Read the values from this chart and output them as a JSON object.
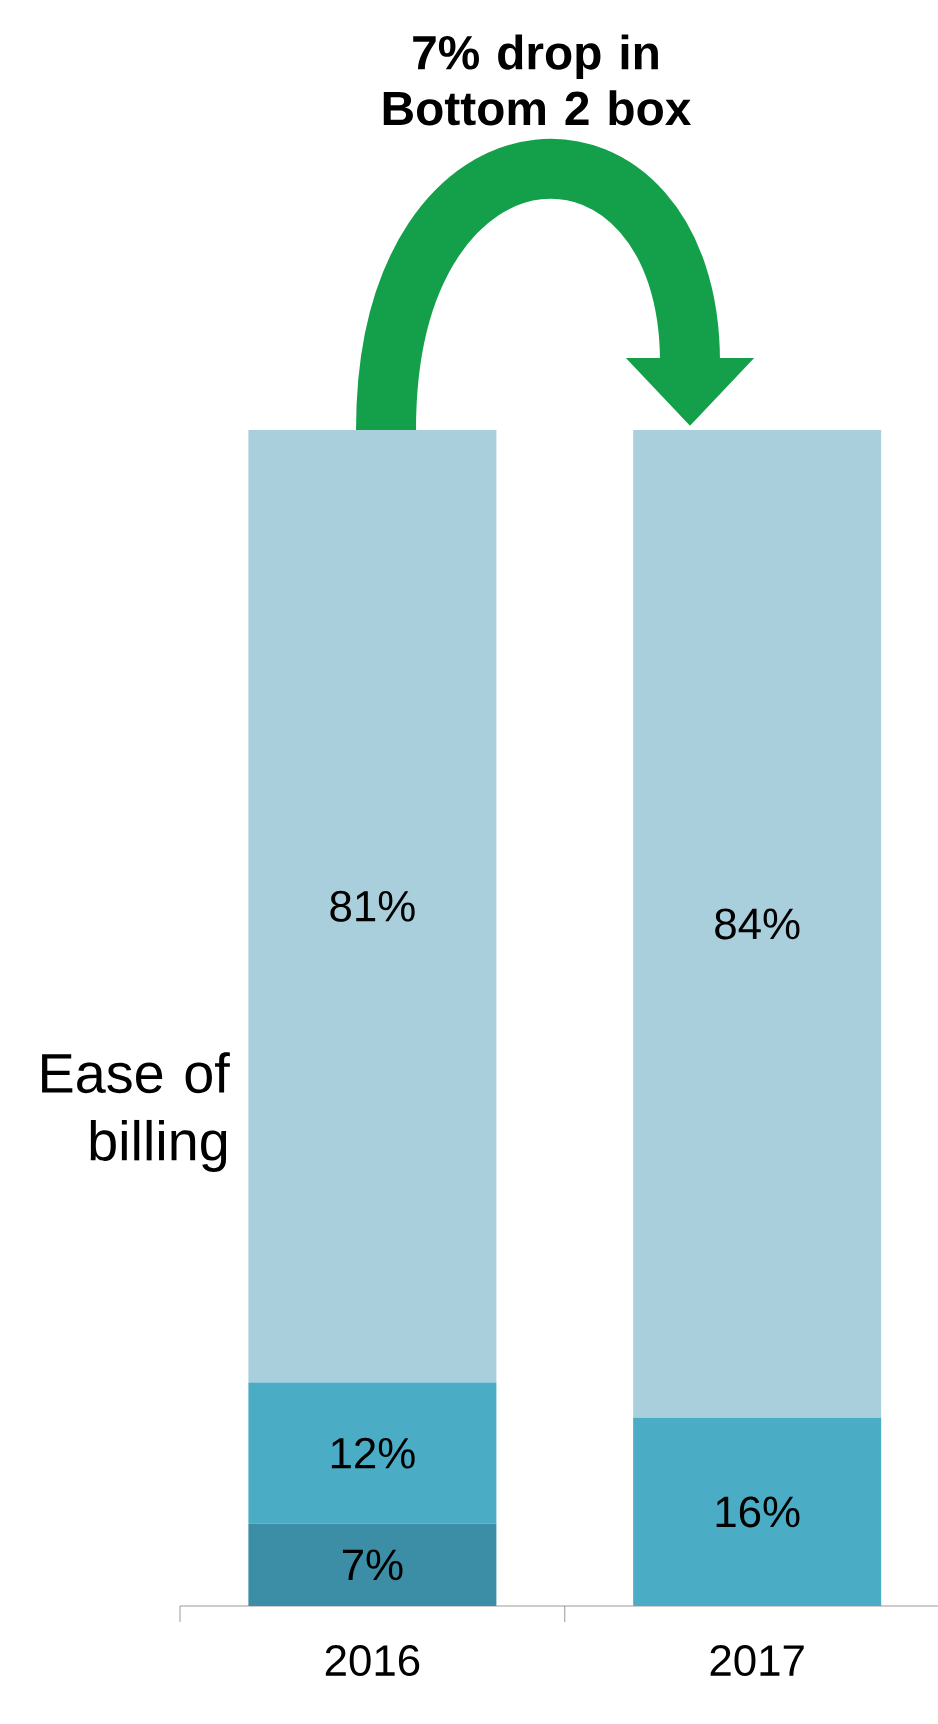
{
  "chart_data": {
    "type": "bar",
    "stacked": true,
    "annotations": [
      "7% drop in Bottom 2 box"
    ],
    "ylabel": "Ease of billing",
    "categories": [
      "2016",
      "2017"
    ],
    "series": [
      {
        "color": "#3b8ea5",
        "values": [
          7,
          null
        ],
        "value_labels": [
          "7%",
          null
        ]
      },
      {
        "color": "#4bacc6",
        "values": [
          12,
          16
        ],
        "value_labels": [
          "12%",
          "16%"
        ]
      },
      {
        "color": "#a9cfdc",
        "values": [
          81,
          84
        ],
        "value_labels": [
          "81%",
          "84%"
        ]
      }
    ]
  }
}
